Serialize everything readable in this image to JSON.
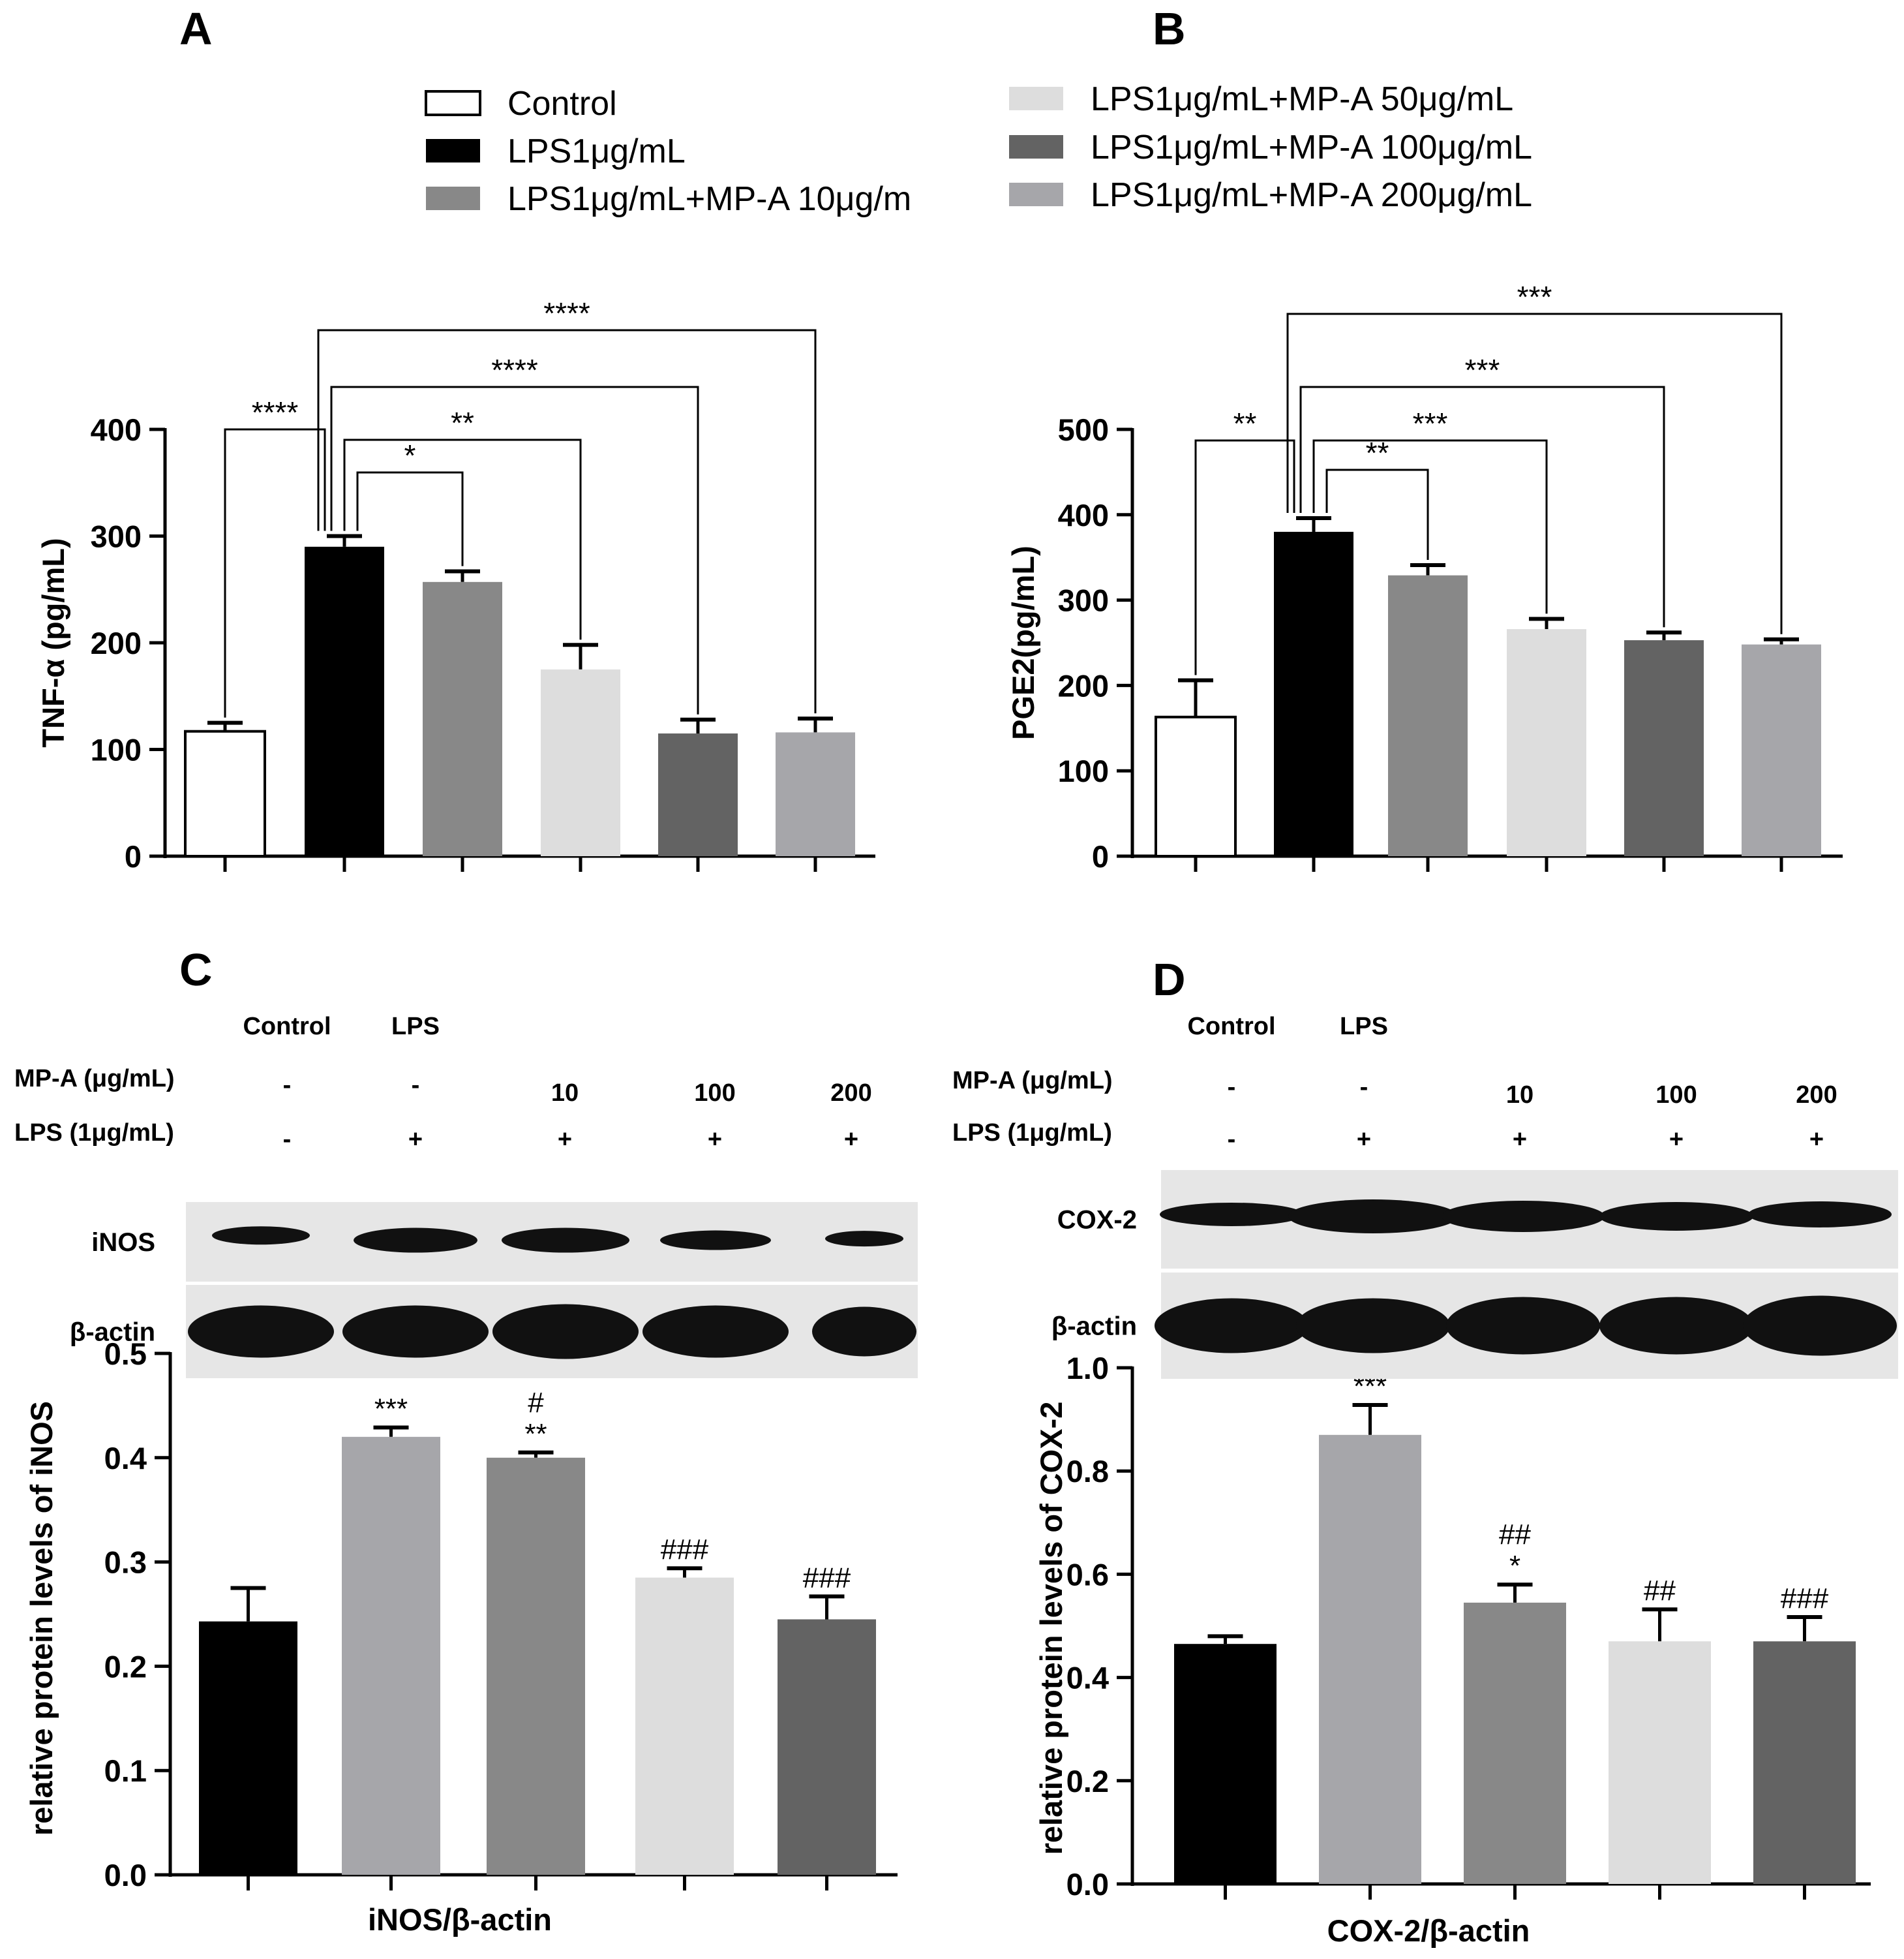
{
  "panel_labels": [
    "A",
    "B",
    "C",
    "D"
  ],
  "colors": {
    "control": "#ffffff",
    "lps": "#000000",
    "mp10": "#888888",
    "mp50": "#dddddd",
    "mp100": "#636363",
    "mp200": "#a6a6aa",
    "axis": "#000000"
  },
  "legend": [
    {
      "label": "Control",
      "color_key": "control"
    },
    {
      "label": "LPS1μg/mL",
      "color_key": "lps"
    },
    {
      "label": "LPS1μg/mL+MP-A 10μg/m",
      "color_key": "mp10"
    },
    {
      "label": "LPS1μg/mL+MP-A 50μg/mL",
      "color_key": "mp50"
    },
    {
      "label": "LPS1μg/mL+MP-A 100μg/mL",
      "color_key": "mp100"
    },
    {
      "label": "LPS1μg/mL+MP-A 200μg/mL",
      "color_key": "mp200"
    }
  ],
  "blots": {
    "C": {
      "header": [
        "Control",
        "LPS"
      ],
      "rows": [
        {
          "label": "MP-A (μg/mL)",
          "values": [
            "-",
            "-",
            "10",
            "100",
            "200"
          ]
        },
        {
          "label": "LPS (1μg/mL)",
          "values": [
            "-",
            "+",
            "+",
            "+",
            "+"
          ]
        }
      ],
      "bands": [
        "iNOS",
        "β-actin"
      ]
    },
    "D": {
      "header": [
        "Control",
        "LPS"
      ],
      "rows": [
        {
          "label": "MP-A (μg/mL)",
          "values": [
            "-",
            "-",
            "10",
            "100",
            "200"
          ]
        },
        {
          "label": "LPS (1μg/mL)",
          "values": [
            "-",
            "+",
            "+",
            "+",
            "+"
          ]
        }
      ],
      "bands": [
        "COX-2",
        "β-actin"
      ]
    }
  },
  "chart_data": [
    {
      "panel": "A",
      "type": "bar",
      "ylabel": "TNF-α (pg/mL)",
      "xlabel": "",
      "ylim": [
        0,
        400
      ],
      "yticks": [
        0,
        100,
        200,
        300,
        400
      ],
      "values": [
        117,
        290,
        257,
        175,
        115,
        116
      ],
      "errors": [
        8,
        10,
        10,
        23,
        13,
        13
      ],
      "color_keys": [
        "control",
        "lps",
        "mp10",
        "mp50",
        "mp100",
        "mp200"
      ],
      "brackets": [
        {
          "from": 0,
          "to": 1,
          "label": "****"
        },
        {
          "from": 1,
          "to": 2,
          "label": "*"
        },
        {
          "from": 1,
          "to": 3,
          "label": "**"
        },
        {
          "from": 1,
          "to": 4,
          "label": "****"
        },
        {
          "from": 1,
          "to": 5,
          "label": "****"
        }
      ]
    },
    {
      "panel": "B",
      "type": "bar",
      "ylabel": "PGE2(pg/mL)",
      "xlabel": "",
      "ylim": [
        0,
        500
      ],
      "yticks": [
        0,
        100,
        200,
        300,
        400,
        500
      ],
      "values": [
        163,
        380,
        329,
        266,
        253,
        248
      ],
      "errors": [
        43,
        16,
        12,
        12,
        9,
        6
      ],
      "color_keys": [
        "control",
        "lps",
        "mp10",
        "mp50",
        "mp100",
        "mp200"
      ],
      "brackets": [
        {
          "from": 0,
          "to": 1,
          "label": "**"
        },
        {
          "from": 1,
          "to": 2,
          "label": "**"
        },
        {
          "from": 1,
          "to": 3,
          "label": "***"
        },
        {
          "from": 1,
          "to": 4,
          "label": "***"
        },
        {
          "from": 1,
          "to": 5,
          "label": "***"
        }
      ]
    },
    {
      "panel": "C",
      "type": "bar",
      "ylabel": "relative protein levels of iNOS",
      "xlabel": "iNOS/β-actin",
      "ylim": [
        0,
        0.5
      ],
      "yticks": [
        "0.0",
        "0.1",
        "0.2",
        "0.3",
        "0.4",
        "0.5"
      ],
      "values": [
        0.243,
        0.42,
        0.4,
        0.285,
        0.245
      ],
      "errors": [
        0.032,
        0.009,
        0.005,
        0.009,
        0.022
      ],
      "color_keys": [
        "lps",
        "mp200",
        "mp10",
        "mp50",
        "mp100"
      ],
      "annotations": [
        [],
        [
          "***"
        ],
        [
          "#",
          "**"
        ],
        [
          "###"
        ],
        [
          "###"
        ]
      ]
    },
    {
      "panel": "D",
      "type": "bar",
      "ylabel": "relative protein levels of COX-2",
      "xlabel": "COX-2/β-actin",
      "ylim": [
        0,
        1.0
      ],
      "yticks": [
        "0.0",
        "0.2",
        "0.4",
        "0.6",
        "0.8",
        "1.0"
      ],
      "values": [
        0.465,
        0.87,
        0.545,
        0.47,
        0.47
      ],
      "errors": [
        0.015,
        0.058,
        0.035,
        0.062,
        0.047
      ],
      "color_keys": [
        "lps",
        "mp200",
        "mp10",
        "mp50",
        "mp100"
      ],
      "annotations": [
        [],
        [
          "***"
        ],
        [
          "##",
          "*"
        ],
        [
          "##"
        ],
        [
          "###"
        ]
      ]
    }
  ]
}
